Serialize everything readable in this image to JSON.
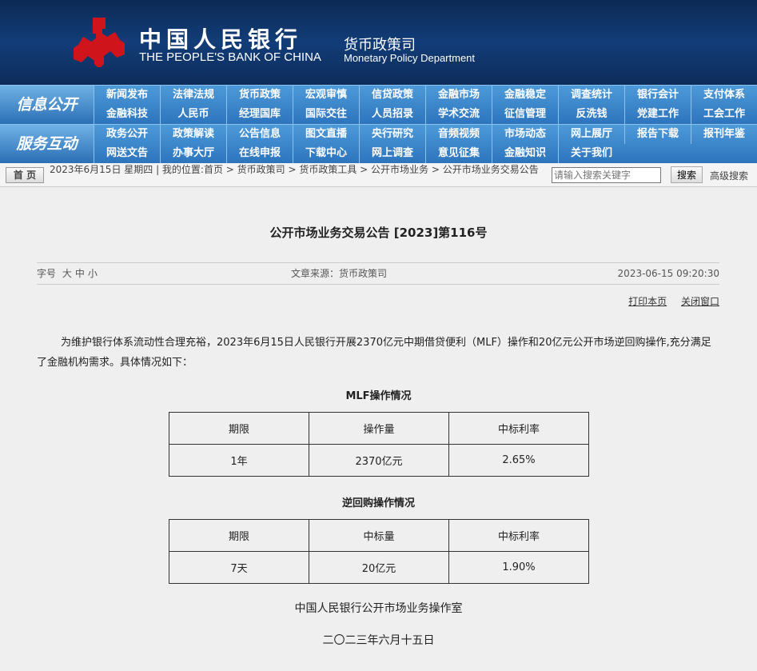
{
  "header": {
    "bank_cn": "中国人民银行",
    "bank_en": "THE PEOPLE'S BANK OF CHINA",
    "dept_cn": "货币政策司",
    "dept_en": "Monetary Policy Department"
  },
  "nav": {
    "info_label": "信息公开",
    "info_rows": [
      [
        "新闻发布",
        "法律法规",
        "货币政策",
        "宏观审慎",
        "信贷政策",
        "金融市场",
        "金融稳定",
        "调查统计",
        "银行会计",
        "支付体系"
      ],
      [
        "金融科技",
        "人民币",
        "经理国库",
        "国际交往",
        "人员招录",
        "学术交流",
        "征信管理",
        "反洗钱",
        "党建工作",
        "工会工作"
      ]
    ],
    "service_label": "服务互动",
    "service_rows": [
      [
        "政务公开",
        "政策解读",
        "公告信息",
        "图文直播",
        "央行研究",
        "音频视频",
        "市场动态",
        "网上展厅",
        "报告下载",
        "报刊年鉴"
      ],
      [
        "网送文告",
        "办事大厅",
        "在线申报",
        "下载中心",
        "网上调查",
        "意见征集",
        "金融知识",
        "关于我们"
      ]
    ]
  },
  "crumb": {
    "home": "首 页",
    "text": "2023年6月15日 星期四 | 我的位置:首页 > 货币政策司 > 货币政策工具 > 公开市场业务 > 公开市场业务交易公告",
    "search_placeholder": "请输入搜索关键字",
    "search": "搜索",
    "advanced": "高级搜索"
  },
  "article": {
    "title": "公开市场业务交易公告 [2023]第116号",
    "font_label": "字号",
    "font_sizes": [
      "大",
      "中",
      "小"
    ],
    "source": "文章来源：货币政策司",
    "datetime": "2023-06-15 09:20:30",
    "print": "打印本页",
    "close": "关闭窗口",
    "paragraph": "为维护银行体系流动性合理充裕，2023年6月15日人民银行开展2370亿元中期借贷便利（MLF）操作和20亿元公开市场逆回购操作,充分满足了金融机构需求。具体情况如下：",
    "mlf_caption": "MLF操作情况",
    "mlf_table": [
      [
        "期限",
        "操作量",
        "中标利率"
      ],
      [
        "1年",
        "2370亿元",
        "2.65%"
      ]
    ],
    "repo_caption": "逆回购操作情况",
    "repo_table": [
      [
        "期限",
        "中标量",
        "中标利率"
      ],
      [
        "7天",
        "20亿元",
        "1.90%"
      ]
    ],
    "signature": "中国人民银行公开市场业务操作室",
    "date": "二〇二三年六月十五日"
  }
}
